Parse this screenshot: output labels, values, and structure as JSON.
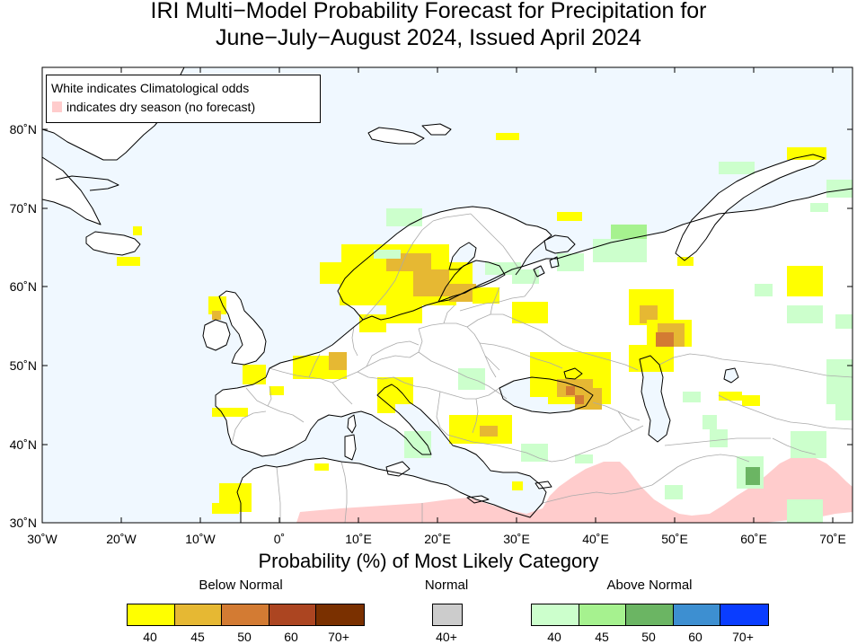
{
  "title": {
    "line1": "IRI Multi−Model Probability Forecast for Precipitation for",
    "line2": "June−July−August 2024, Issued April 2024"
  },
  "map": {
    "lon_range": [
      -30,
      73
    ],
    "lat_range": [
      30,
      88
    ],
    "y_ticks": [
      "80˚N",
      "70˚N",
      "60˚N",
      "50˚N",
      "40˚N",
      "30˚N"
    ],
    "x_ticks": [
      "30˚W",
      "20˚W",
      "10˚W",
      "0˚",
      "10˚E",
      "20˚E",
      "30˚E",
      "40˚E",
      "50˚E",
      "60˚E",
      "70˚E"
    ]
  },
  "map_legend": {
    "white_text": "White indicates Climatological odds",
    "dry_text": "indicates dry season (no forecast)",
    "dry_color": "#ffcccc"
  },
  "colorbar": {
    "title": "Probability (%) of Most Likely Category",
    "groups": [
      {
        "name": "Below Normal",
        "colors": [
          "#ffff00",
          "#e6b833",
          "#d37b33",
          "#ac4521",
          "#7a3000"
        ],
        "labels": [
          "40",
          "45",
          "50",
          "60",
          "70+"
        ]
      },
      {
        "name": "Normal",
        "colors": [
          "#cccccc"
        ],
        "labels": [
          "40+"
        ]
      },
      {
        "name": "Above Normal",
        "colors": [
          "#ccffcc",
          "#a6f28f",
          "#6bb563",
          "#3d8fd1",
          "#0a3dff"
        ],
        "labels": [
          "40",
          "45",
          "50",
          "60",
          "70+"
        ]
      }
    ]
  },
  "colors": {
    "ocean": "#f0f8ff",
    "land": "#ffffff",
    "coast": "#000000",
    "border": "#aaaaaa"
  }
}
